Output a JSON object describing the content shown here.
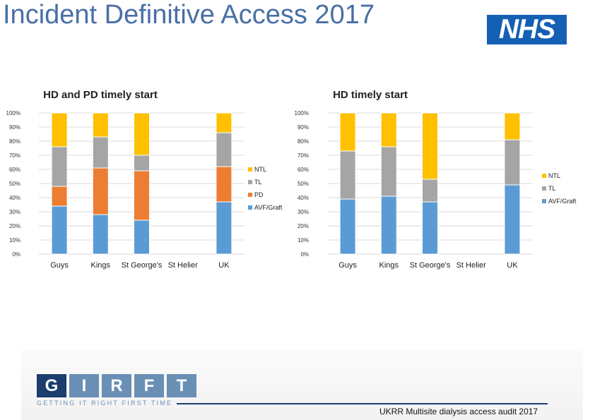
{
  "page": {
    "title": "Incident Definitive Access 2017",
    "logo_text": "NHS",
    "footer_logo_letters": [
      "G",
      "I",
      "R",
      "F",
      "T"
    ],
    "footer_tagline": "GETTING IT RIGHT FIRST TIME",
    "footer_text": "UKRR Multisite dialysis access audit 2017"
  },
  "colors": {
    "AVF/Graft": "#5b9bd5",
    "PD": "#ed7d31",
    "TL": "#a5a5a5",
    "NTL": "#ffc000"
  },
  "chart_data": [
    {
      "type": "bar",
      "stacked": true,
      "percent": true,
      "title": "HD and PD timely start",
      "categories": [
        "Guys",
        "Kings",
        "St George's",
        "St Helier",
        "UK"
      ],
      "series": [
        {
          "name": "AVF/Graft",
          "values": [
            34,
            28,
            24,
            0,
            37
          ]
        },
        {
          "name": "PD",
          "values": [
            14,
            33,
            35,
            0,
            25
          ]
        },
        {
          "name": "TL",
          "values": [
            28,
            22,
            11,
            0,
            24
          ]
        },
        {
          "name": "NTL",
          "values": [
            24,
            17,
            30,
            0,
            14
          ]
        }
      ],
      "legend": [
        "NTL",
        "TL",
        "PD",
        "AVF/Graft"
      ],
      "ylim": [
        0,
        100
      ],
      "yticks": [
        "0%",
        "10%",
        "20%",
        "30%",
        "40%",
        "50%",
        "60%",
        "70%",
        "80%",
        "90%",
        "100%"
      ],
      "legend_position": "right"
    },
    {
      "type": "bar",
      "stacked": true,
      "percent": true,
      "title": "HD timely start",
      "categories": [
        "Guys",
        "Kings",
        "St George's",
        "St Helier",
        "UK"
      ],
      "series": [
        {
          "name": "AVF/Graft",
          "values": [
            39,
            41,
            37,
            0,
            49
          ]
        },
        {
          "name": "TL",
          "values": [
            34,
            35,
            16,
            0,
            32
          ]
        },
        {
          "name": "NTL",
          "values": [
            27,
            24,
            47,
            0,
            19
          ]
        }
      ],
      "legend": [
        "NTL",
        "TL",
        "AVF/Graft"
      ],
      "ylim": [
        0,
        100
      ],
      "yticks": [
        "0%",
        "10%",
        "20%",
        "30%",
        "40%",
        "50%",
        "60%",
        "70%",
        "80%",
        "90%",
        "100%"
      ],
      "legend_position": "right"
    }
  ]
}
